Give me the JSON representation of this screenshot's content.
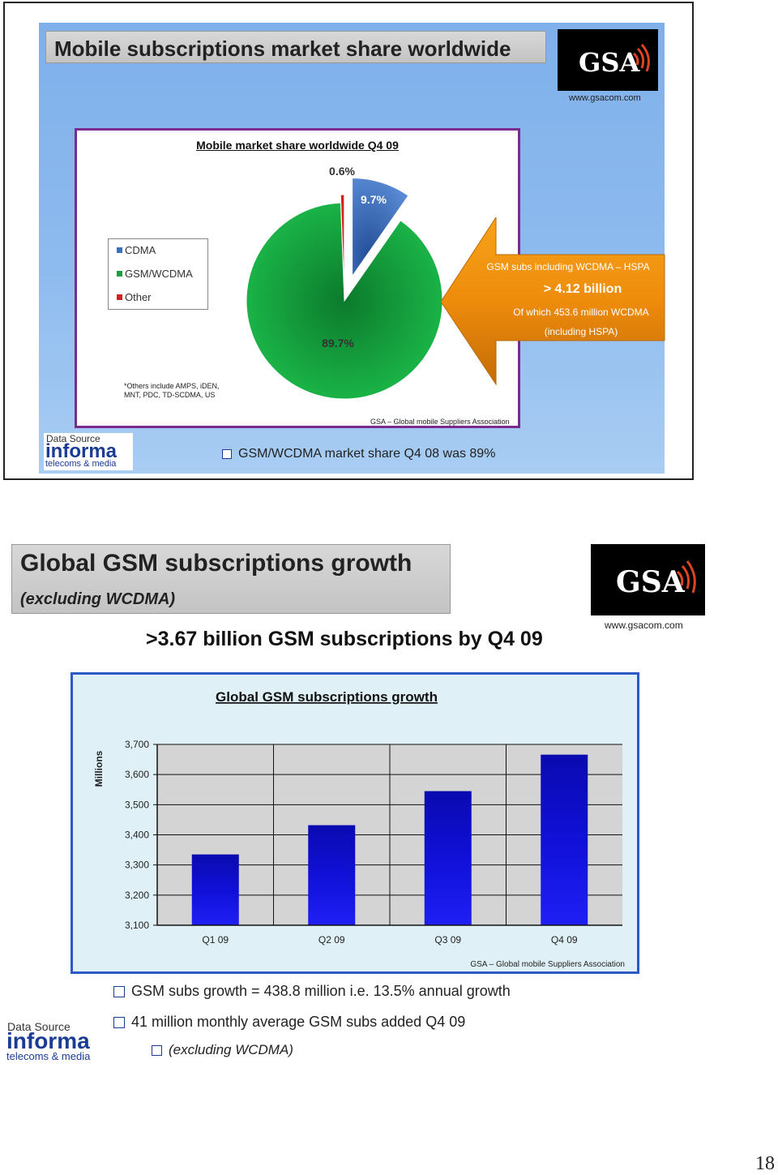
{
  "slide1": {
    "title": "Mobile subscriptions market share worldwide",
    "logo_text": "GSA",
    "logo_url": "www.gsacom.com",
    "chart_title": "Mobile market share worldwide Q4 09",
    "legend": [
      "CDMA",
      "GSM/WCDMA",
      "Other"
    ],
    "footnote_line1": "*Others include AMPS, iDEN,",
    "footnote_line2": "MNT, PDC, TD-SCDMA, US",
    "source_credit": "GSA – Global mobile Suppliers Association",
    "callout": {
      "line1": "GSM subs including WCDMA – HSPA",
      "line2": "> 4.12 billion",
      "line3": "Of which 453.6 million WCDMA",
      "line4": "(including HSPA)"
    },
    "data_source": {
      "label": "Data Source",
      "brand": "informa",
      "tagline": "telecoms & media"
    },
    "bullet": "GSM/WCDMA market share Q4 08 was 89%"
  },
  "slide2": {
    "title": "Global GSM subscriptions growth",
    "subtitle": "(excluding WCDMA)",
    "logo_text": "GSA",
    "logo_url": "www.gsacom.com",
    "headline": ">3.67 billion GSM subscriptions by Q4 09",
    "source_credit": "GSA – Global mobile Suppliers Association",
    "data_source": {
      "label": "Data Source",
      "brand": "informa",
      "tagline": "telecoms & media"
    },
    "bullets": [
      "GSM subs growth = 438.8 million i.e. 13.5% annual growth",
      "41 million monthly average GSM subs added Q4 09",
      "(excluding WCDMA)"
    ]
  },
  "page_number": "18",
  "chart_data": [
    {
      "type": "pie",
      "title": "Mobile market share worldwide Q4 09",
      "categories": [
        "CDMA",
        "GSM/WCDMA",
        "Other"
      ],
      "values": [
        9.7,
        89.7,
        0.6
      ],
      "labels": [
        "9.7%",
        "89.7%",
        "0.6%"
      ],
      "colors": [
        "#3b6fc0",
        "#16a03f",
        "#d61e1e"
      ],
      "legend": "left"
    },
    {
      "type": "bar",
      "title": "Global GSM subscriptions growth",
      "categories": [
        "Q1 09",
        "Q2 09",
        "Q3 09",
        "Q4 09"
      ],
      "values": [
        3335,
        3432,
        3545,
        3666
      ],
      "xlabel": "",
      "ylabel": "Millions",
      "ylim": [
        3100,
        3700
      ],
      "yticks": [
        3100,
        3200,
        3300,
        3400,
        3500,
        3600,
        3700
      ],
      "ytick_labels": [
        "3,100",
        "3,200",
        "3,300",
        "3,400",
        "3,500",
        "3,600",
        "3,700"
      ],
      "grid": true,
      "color": "#1010d8"
    }
  ]
}
